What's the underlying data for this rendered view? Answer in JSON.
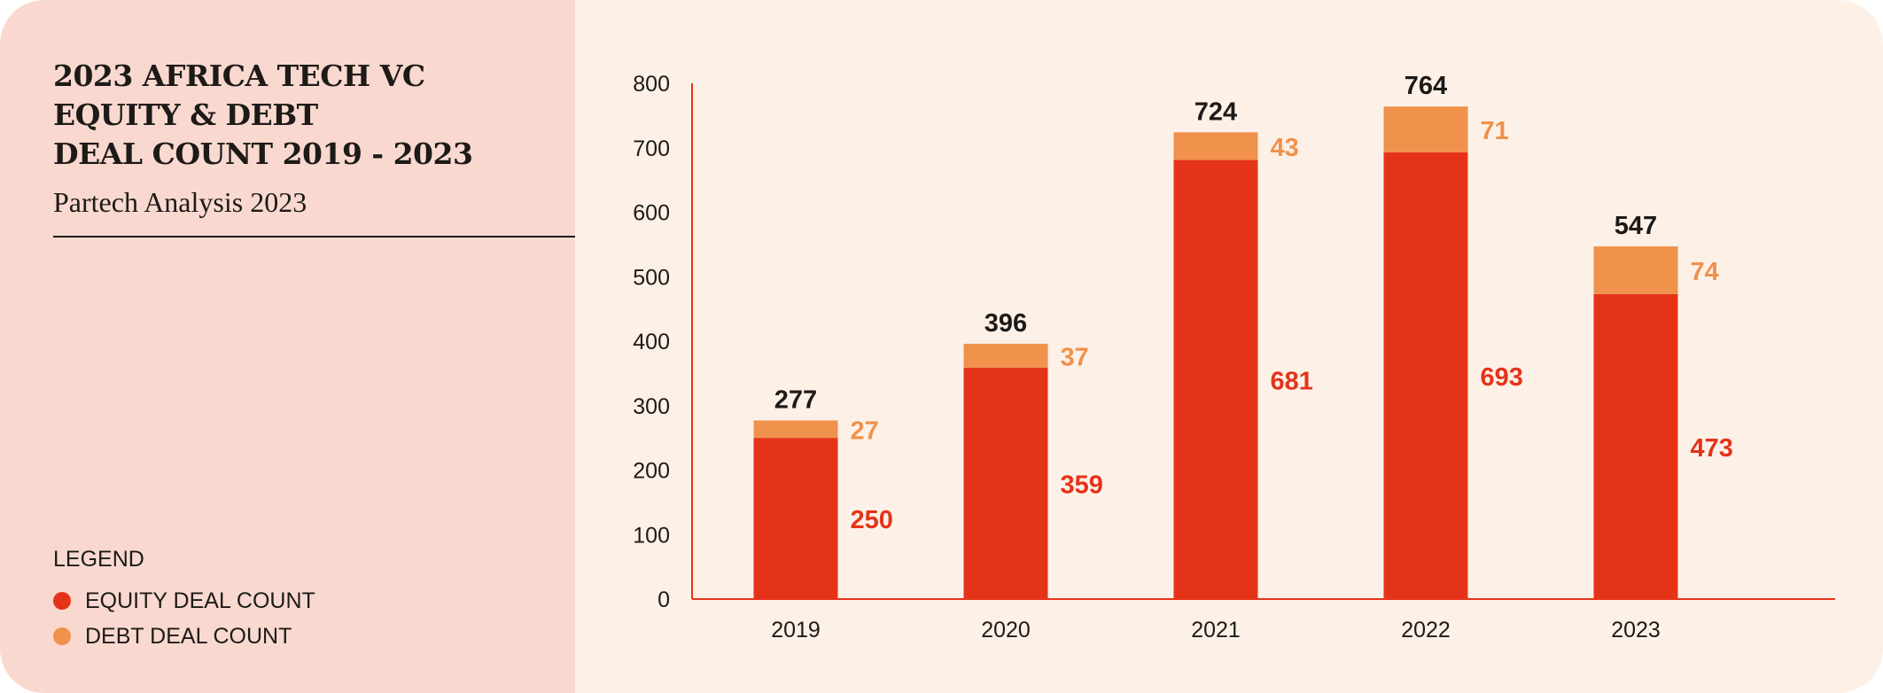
{
  "title": "2023 AFRICA TECH VC\nEQUITY & DEBT\nDEAL COUNT 2019 - 2023",
  "subtitle": "Partech Analysis 2023",
  "legend": {
    "title": "LEGEND",
    "items": [
      {
        "label": "EQUITY DEAL COUNT",
        "color": "#e5331a"
      },
      {
        "label": "DEBT DEAL COUNT",
        "color": "#f0914c"
      }
    ]
  },
  "chart_data": {
    "type": "bar",
    "stacked": true,
    "categories": [
      "2019",
      "2020",
      "2021",
      "2022",
      "2023"
    ],
    "series": [
      {
        "name": "EQUITY DEAL COUNT",
        "color": "#e5331a",
        "values": [
          250,
          359,
          681,
          693,
          473
        ]
      },
      {
        "name": "DEBT DEAL COUNT",
        "color": "#f0914c",
        "values": [
          27,
          37,
          43,
          71,
          74
        ]
      }
    ],
    "totals": [
      277,
      396,
      724,
      764,
      547
    ],
    "ylim": [
      0,
      800
    ],
    "yticks": [
      0,
      100,
      200,
      300,
      400,
      500,
      600,
      700,
      800
    ],
    "grid": false,
    "legend_position": "left-panel-bottom"
  }
}
